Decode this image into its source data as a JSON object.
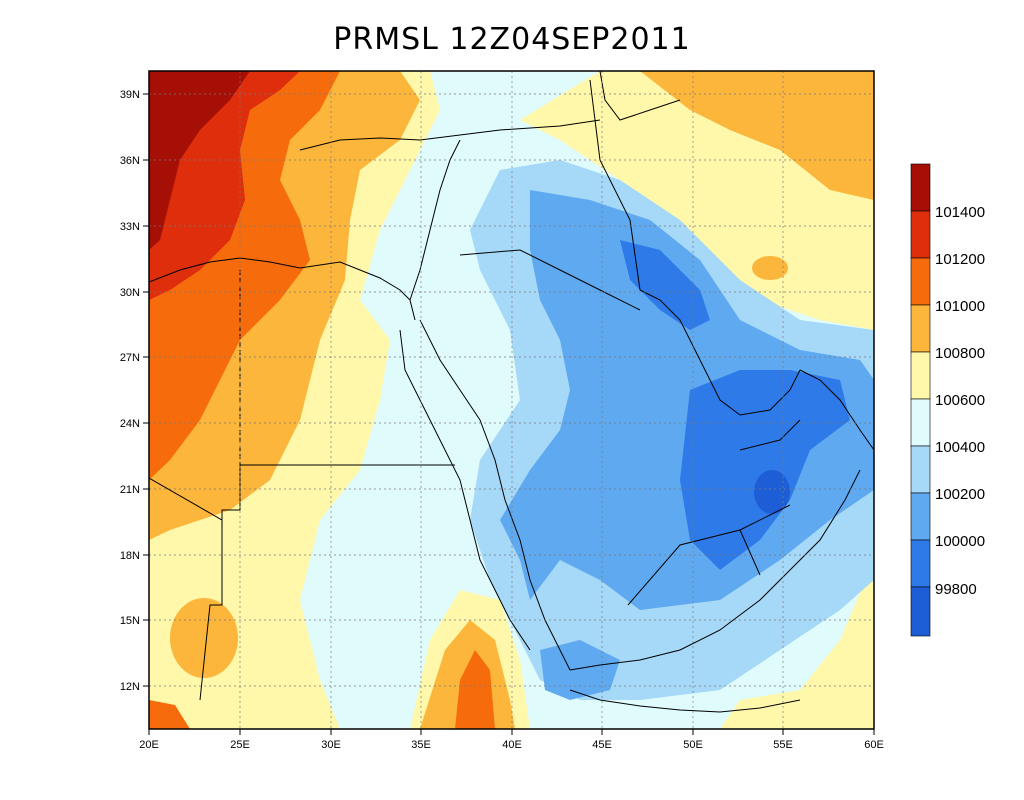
{
  "title": "PRMSL 12Z04SEP2011",
  "axes": {
    "lon_ticks": [
      "20E",
      "25E",
      "30E",
      "35E",
      "40E",
      "45E",
      "50E",
      "55E",
      "60E"
    ],
    "lat_ticks": [
      "39N",
      "36N",
      "33N",
      "30N",
      "27N",
      "24N",
      "21N",
      "18N",
      "15N",
      "12N"
    ]
  },
  "colorbar": {
    "labels": [
      "101400",
      "101200",
      "101000",
      "100800",
      "100600",
      "100400",
      "100200",
      "100000",
      "99800"
    ],
    "colors": [
      "#a50f05",
      "#de2e0c",
      "#f66c0c",
      "#fbb63b",
      "#fff7a9",
      "#e0fbfb",
      "#a6d8f7",
      "#5ea9f0",
      "#2e7ae8",
      "#1d5ed6"
    ]
  },
  "palette": {
    "c101400": "#a50f05",
    "c101200": "#de2e0c",
    "c101000": "#f66c0c",
    "c100800": "#fbb63b",
    "c100600": "#fff7a9",
    "c100400": "#e0fbfb",
    "c100200": "#a6d8f7",
    "c100000": "#5ea9f0",
    "c99800": "#2e7ae8",
    "c99600": "#1d5ed6"
  }
}
